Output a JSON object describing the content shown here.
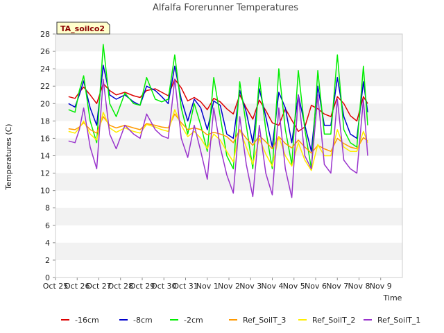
{
  "chart_data": {
    "type": "line",
    "title": "Alfalfa Forerunner Temperatures",
    "xlabel": "Time",
    "ylabel": "Temperatures (C)",
    "ylim": [
      0,
      28
    ],
    "yticks": [
      0,
      2,
      4,
      6,
      8,
      10,
      12,
      14,
      16,
      18,
      20,
      22,
      24,
      26,
      28
    ],
    "xlim": [
      0,
      16
    ],
    "xticks": [
      "Oct 25",
      "Oct 26",
      "Oct 27",
      "Oct 28",
      "Oct 29",
      "Oct 30",
      "Oct 31",
      "Nov 1",
      "Nov 2",
      "Nov 3",
      "Nov 4",
      "Nov 5",
      "Nov 6",
      "Nov 7",
      "Nov 8",
      "Nov 9"
    ],
    "x_unit": "days since Oct 25",
    "badge": "TA_soilco2",
    "grid": "horizontal bands",
    "legend_position": "bottom",
    "series": [
      {
        "name": "-16cm",
        "color": "#dd0000",
        "x": [
          0.6,
          0.9,
          1.1,
          1.3,
          1.6,
          1.9,
          2.2,
          2.5,
          2.8,
          3.2,
          3.6,
          3.9,
          4.2,
          4.6,
          4.9,
          5.2,
          5.5,
          5.8,
          6.1,
          6.4,
          6.7,
          7.0,
          7.3,
          7.6,
          7.9,
          8.2,
          8.5,
          8.8,
          9.1,
          9.4,
          9.7,
          10.0,
          10.3,
          10.6,
          10.9,
          11.2,
          11.5,
          11.8,
          12.1,
          12.4,
          12.7,
          13.0,
          13.3,
          13.6,
          13.9,
          14.2,
          14.4
        ],
        "values": [
          20.8,
          20.6,
          21.3,
          21.9,
          21.0,
          20.0,
          22.3,
          21.5,
          21.0,
          21.3,
          20.9,
          20.7,
          21.5,
          21.7,
          21.3,
          20.9,
          22.8,
          21.8,
          20.3,
          20.7,
          20.2,
          19.3,
          20.6,
          20.2,
          19.4,
          18.8,
          21.0,
          19.5,
          18.2,
          20.4,
          19.2,
          17.8,
          17.5,
          19.4,
          18.1,
          16.8,
          17.3,
          19.8,
          19.4,
          18.8,
          18.5,
          20.8,
          20.0,
          18.6,
          18.0,
          20.8,
          20.0
        ]
      },
      {
        "name": "-8cm",
        "color": "#0000cc",
        "x": [
          0.6,
          0.9,
          1.1,
          1.3,
          1.6,
          1.9,
          2.2,
          2.5,
          2.8,
          3.2,
          3.6,
          3.9,
          4.2,
          4.6,
          4.9,
          5.2,
          5.5,
          5.8,
          6.1,
          6.4,
          6.7,
          7.0,
          7.3,
          7.6,
          7.9,
          8.2,
          8.5,
          8.8,
          9.1,
          9.4,
          9.7,
          10.0,
          10.3,
          10.6,
          10.9,
          11.2,
          11.5,
          11.8,
          12.1,
          12.4,
          12.7,
          13.0,
          13.3,
          13.6,
          13.9,
          14.2,
          14.4
        ],
        "values": [
          20.0,
          19.6,
          21.0,
          22.6,
          19.5,
          17.5,
          24.4,
          21.0,
          20.5,
          21.0,
          20.2,
          19.8,
          22.0,
          21.5,
          20.8,
          20.0,
          24.3,
          20.5,
          18.0,
          20.5,
          19.5,
          17.0,
          20.3,
          19.8,
          16.5,
          16.0,
          21.5,
          19.0,
          15.5,
          21.7,
          18.5,
          15.0,
          21.3,
          19.5,
          15.5,
          21.0,
          17.5,
          14.5,
          22.0,
          17.5,
          17.5,
          23.0,
          18.5,
          16.5,
          16.0,
          22.5,
          19.0
        ]
      },
      {
        "name": "-2cm",
        "color": "#00ee00",
        "x": [
          0.6,
          0.9,
          1.1,
          1.3,
          1.6,
          1.9,
          2.2,
          2.5,
          2.8,
          3.2,
          3.6,
          3.9,
          4.2,
          4.6,
          4.9,
          5.2,
          5.5,
          5.8,
          6.1,
          6.4,
          6.7,
          7.0,
          7.3,
          7.6,
          7.9,
          8.2,
          8.5,
          8.8,
          9.1,
          9.4,
          9.7,
          10.0,
          10.3,
          10.6,
          10.9,
          11.2,
          11.5,
          11.8,
          12.1,
          12.4,
          12.7,
          13.0,
          13.3,
          13.6,
          13.9,
          14.2,
          14.4
        ],
        "values": [
          19.3,
          19.0,
          21.5,
          23.2,
          18.0,
          15.5,
          26.8,
          20.0,
          18.5,
          21.2,
          20.0,
          19.8,
          23.0,
          20.5,
          20.2,
          20.5,
          25.6,
          19.5,
          16.5,
          20.0,
          17.5,
          14.5,
          23.0,
          18.5,
          14.0,
          12.5,
          22.5,
          17.5,
          12.5,
          23.0,
          17.0,
          12.5,
          24.0,
          17.0,
          13.0,
          23.8,
          17.0,
          12.5,
          23.8,
          16.5,
          16.5,
          25.6,
          17.0,
          15.5,
          15.0,
          24.3,
          17.5
        ]
      },
      {
        "name": "Ref_SoilT_3",
        "color": "#ff9900",
        "x": [
          0.6,
          0.9,
          1.1,
          1.3,
          1.6,
          1.9,
          2.2,
          2.5,
          2.8,
          3.2,
          3.6,
          3.9,
          4.2,
          4.6,
          4.9,
          5.2,
          5.5,
          5.8,
          6.1,
          6.4,
          6.7,
          7.0,
          7.3,
          7.6,
          7.9,
          8.2,
          8.5,
          8.8,
          9.1,
          9.4,
          9.7,
          10.0,
          10.3,
          10.6,
          10.9,
          11.2,
          11.5,
          11.8,
          12.1,
          12.4,
          12.7,
          13.0,
          13.3,
          13.6,
          13.9,
          14.2,
          14.4
        ],
        "values": [
          17.1,
          17.0,
          17.3,
          17.8,
          17.0,
          16.6,
          18.5,
          17.5,
          17.2,
          17.5,
          17.2,
          17.0,
          17.7,
          17.5,
          17.3,
          17.2,
          18.8,
          17.8,
          17.0,
          17.2,
          17.0,
          16.4,
          16.7,
          16.5,
          16.2,
          15.5,
          17.0,
          16.0,
          15.2,
          16.3,
          15.6,
          14.8,
          16.2,
          15.4,
          14.9,
          15.8,
          15.0,
          14.3,
          15.2,
          14.8,
          14.5,
          16.0,
          15.4,
          15.0,
          14.8,
          16.1,
          15.7
        ]
      },
      {
        "name": "Ref_SoilT_2",
        "color": "#ffee00",
        "x": [
          0.6,
          0.9,
          1.1,
          1.3,
          1.6,
          1.9,
          2.2,
          2.5,
          2.8,
          3.2,
          3.6,
          3.9,
          4.2,
          4.6,
          4.9,
          5.2,
          5.5,
          5.8,
          6.1,
          6.4,
          6.7,
          7.0,
          7.3,
          7.6,
          7.9,
          8.2,
          8.5,
          8.8,
          9.1,
          9.4,
          9.7,
          10.0,
          10.3,
          10.6,
          10.9,
          11.2,
          11.5,
          11.8,
          12.1,
          12.4,
          12.7,
          13.0,
          13.3,
          13.6,
          13.9,
          14.2,
          14.4
        ],
        "values": [
          16.8,
          16.6,
          17.2,
          18.0,
          16.5,
          15.8,
          19.0,
          17.2,
          16.7,
          17.2,
          16.8,
          16.6,
          17.6,
          17.3,
          17.0,
          16.8,
          19.3,
          17.5,
          16.2,
          16.8,
          16.0,
          14.8,
          16.5,
          15.8,
          14.5,
          13.3,
          17.0,
          15.0,
          13.0,
          16.0,
          14.2,
          12.8,
          16.2,
          14.0,
          12.8,
          15.5,
          13.5,
          12.3,
          15.3,
          14.0,
          14.0,
          17.0,
          15.0,
          14.5,
          14.5,
          16.8,
          15.5
        ]
      },
      {
        "name": "Ref_SoilT_1",
        "color": "#9933cc",
        "x": [
          0.6,
          0.9,
          1.1,
          1.3,
          1.6,
          1.9,
          2.2,
          2.5,
          2.8,
          3.2,
          3.6,
          3.9,
          4.2,
          4.6,
          4.9,
          5.2,
          5.5,
          5.8,
          6.1,
          6.4,
          6.7,
          7.0,
          7.3,
          7.6,
          7.9,
          8.2,
          8.5,
          8.8,
          9.1,
          9.4,
          9.7,
          10.0,
          10.3,
          10.6,
          10.9,
          11.2,
          11.5,
          11.8,
          12.1,
          12.4,
          12.7,
          13.0,
          13.3,
          13.6,
          13.9,
          14.2,
          14.4
        ],
        "values": [
          15.7,
          15.5,
          17.0,
          19.5,
          15.0,
          12.5,
          22.8,
          16.5,
          14.8,
          17.5,
          16.5,
          16.0,
          18.8,
          17.0,
          16.3,
          16.0,
          22.8,
          16.0,
          13.8,
          17.5,
          14.5,
          11.3,
          19.5,
          15.0,
          11.8,
          9.7,
          18.5,
          13.0,
          9.3,
          17.5,
          12.0,
          9.5,
          19.5,
          12.5,
          9.2,
          21.0,
          14.0,
          12.5,
          21.0,
          13.0,
          12.0,
          20.5,
          13.5,
          12.5,
          12.0,
          20.5,
          14.0
        ]
      }
    ]
  }
}
